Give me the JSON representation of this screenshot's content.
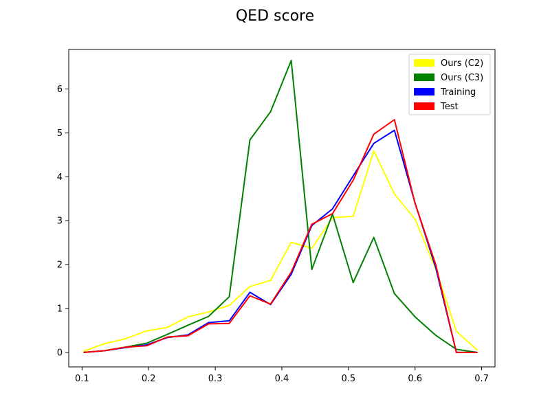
{
  "chart_data": {
    "type": "line",
    "title": "QED score",
    "xlabel": "",
    "ylabel": "",
    "xlim": [
      0.08,
      0.72
    ],
    "ylim": [
      -0.33,
      6.9
    ],
    "xticks": [
      0.1,
      0.2,
      0.3,
      0.4,
      0.5,
      0.6,
      0.7
    ],
    "xtick_labels": [
      "0.1",
      "0.2",
      "0.3",
      "0.4",
      "0.5",
      "0.6",
      "0.7"
    ],
    "yticks": [
      0,
      1,
      2,
      3,
      4,
      5,
      6
    ],
    "ytick_labels": [
      "0",
      "1",
      "2",
      "3",
      "4",
      "5",
      "6"
    ],
    "grid": false,
    "legend_position": "top-right",
    "x": [
      0.103,
      0.134,
      0.165,
      0.197,
      0.228,
      0.259,
      0.29,
      0.321,
      0.352,
      0.383,
      0.414,
      0.445,
      0.476,
      0.507,
      0.538,
      0.569,
      0.6,
      0.631,
      0.662,
      0.693
    ],
    "series": [
      {
        "name": "Ours (C2)",
        "color": "#ffff00",
        "values": [
          0.03,
          0.2,
          0.31,
          0.49,
          0.57,
          0.81,
          0.92,
          1.07,
          1.5,
          1.64,
          2.51,
          2.37,
          3.07,
          3.1,
          4.59,
          3.61,
          3.03,
          1.9,
          0.48,
          0.06
        ]
      },
      {
        "name": "Ours (C3)",
        "color": "#008000",
        "values": [
          0.0,
          0.04,
          0.12,
          0.21,
          0.41,
          0.62,
          0.82,
          1.27,
          4.84,
          5.48,
          6.65,
          1.89,
          3.15,
          1.59,
          2.62,
          1.34,
          0.81,
          0.39,
          0.07,
          0.0
        ]
      },
      {
        "name": "Training",
        "color": "#0000ff",
        "values": [
          0.0,
          0.04,
          0.11,
          0.17,
          0.34,
          0.4,
          0.68,
          0.72,
          1.37,
          1.09,
          1.78,
          2.89,
          3.27,
          4.02,
          4.76,
          5.06,
          3.4,
          1.93,
          0.0,
          0.0
        ]
      },
      {
        "name": "Test",
        "color": "#ff0000",
        "values": [
          0.0,
          0.04,
          0.12,
          0.15,
          0.35,
          0.38,
          0.65,
          0.66,
          1.29,
          1.1,
          1.83,
          2.92,
          3.16,
          3.92,
          4.97,
          5.3,
          3.39,
          2.0,
          0.0,
          0.0
        ]
      }
    ]
  }
}
